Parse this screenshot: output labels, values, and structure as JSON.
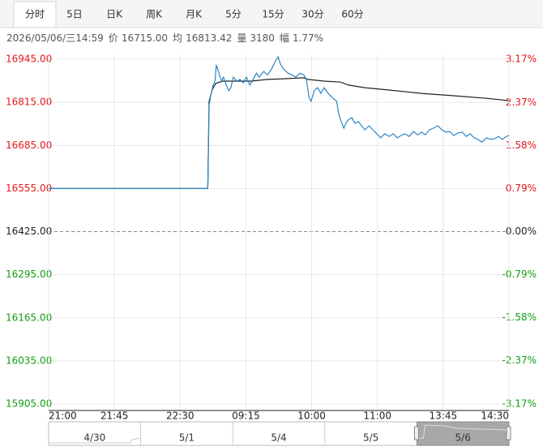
{
  "tabs": [
    "分时",
    "5日",
    "日K",
    "周K",
    "月K",
    "5分",
    "15分",
    "30分",
    "60分"
  ],
  "active_tab": 0,
  "info": [
    "2026/05/06/三14:59",
    "价",
    "16715.00",
    "均",
    "16813.42",
    "量",
    "3180",
    "幅",
    "1.77%"
  ],
  "chart_data": {
    "type": "line",
    "x": [
      0,
      24.2,
      24.4,
      24.6,
      25.0,
      25.3,
      25.5,
      25.9,
      26.3,
      26.6,
      27.0,
      27.4,
      27.7,
      28.1,
      28.6,
      29.1,
      29.6,
      30.1,
      30.6,
      31.1,
      31.6,
      32.0,
      32.7,
      33.3,
      33.9,
      34.5,
      34.9,
      35.2,
      35.7,
      36.4,
      37.0,
      37.6,
      38.2,
      38.8,
      39.2,
      39.6,
      39.9,
      40.4,
      40.9,
      41.4,
      41.9,
      42.5,
      43.1,
      43.8,
      44.1,
      44.5,
      44.9,
      45.2,
      45.6,
      46.1,
      46.6,
      47.1,
      47.6,
      48.1,
      48.7,
      49.3,
      49.9,
      50.5,
      51.1,
      51.8,
      52.4,
      53.0,
      53.6,
      54.2,
      54.8,
      55.5,
      56.1,
      56.7,
      57.3,
      57.9,
      58.5,
      59.2,
      59.8,
      60.4,
      61.0,
      61.6,
      62.2,
      62.9,
      63.5,
      64.1,
      64.7,
      65.3,
      65.9,
      66.6,
      67.2,
      67.8,
      68.4,
      69.0,
      69.6,
      70.0
    ],
    "series": [
      {
        "color": "#2c86c4",
        "values": [
          16555,
          16555,
          16805,
          16830,
          16867,
          16879,
          16928,
          16903,
          16879,
          16891,
          16867,
          16850,
          16859,
          16891,
          16879,
          16884,
          16874,
          16891,
          16867,
          16884,
          16903,
          16891,
          16908,
          16898,
          16916,
          16940,
          16952,
          16933,
          16916,
          16903,
          16898,
          16891,
          16903,
          16898,
          16884,
          16830,
          16818,
          16850,
          16859,
          16842,
          16859,
          16842,
          16830,
          16818,
          16781,
          16757,
          16737,
          16752,
          16762,
          16769,
          16752,
          16757,
          16744,
          16732,
          16744,
          16732,
          16720,
          16708,
          16720,
          16712,
          16720,
          16708,
          16715,
          16720,
          16712,
          16727,
          16717,
          16725,
          16717,
          16732,
          16737,
          16744,
          16732,
          16725,
          16727,
          16715,
          16722,
          16725,
          16712,
          16720,
          16708,
          16703,
          16695,
          16708,
          16703,
          16705,
          16712,
          16703,
          16712,
          16715
        ]
      },
      {
        "color": "#222222",
        "x": [
          0,
          24.2,
          24.4,
          24.9,
          25.4,
          26.5,
          28.3,
          30.8,
          33.3,
          35.7,
          38.8,
          39.4,
          41.9,
          44.4,
          45.6,
          48.1,
          51.8,
          56.7,
          61.6,
          66.6,
          70
        ],
        "values": [
          16555,
          16555,
          16818,
          16854,
          16872,
          16879,
          16879,
          16879,
          16884,
          16886,
          16889,
          16884,
          16879,
          16876,
          16867,
          16859,
          16852,
          16842,
          16835,
          16827,
          16820
        ]
      }
    ],
    "xlim": [
      0,
      70
    ],
    "xticks": [
      {
        "value": 0,
        "label": "21:00"
      },
      {
        "value": 10,
        "label": "21:45"
      },
      {
        "value": 20,
        "label": "22:30"
      },
      {
        "value": 30,
        "label": "09:15"
      },
      {
        "value": 40,
        "label": "10:00"
      },
      {
        "value": 50,
        "label": "11:00"
      },
      {
        "value": 60,
        "label": "13:45"
      },
      {
        "value": 70,
        "label": "14:30"
      }
    ],
    "ylim": [
      15905,
      16945
    ],
    "yticks": [
      {
        "value": 16945,
        "label": "16945.00"
      },
      {
        "value": 16815,
        "label": "16815.00"
      },
      {
        "value": 16685,
        "label": "16685.00"
      },
      {
        "value": 16555,
        "label": "16555.00"
      },
      {
        "value": 16425,
        "label": "16425.00"
      },
      {
        "value": 16295,
        "label": "16295.00"
      },
      {
        "value": 16165,
        "label": "16165.00"
      },
      {
        "value": 16035,
        "label": "16035.00"
      },
      {
        "value": 15905,
        "label": "15905.00"
      }
    ],
    "y2lim": [
      -3.17,
      3.17
    ],
    "y2ticks": [
      {
        "value": 3.17,
        "label": "3.17%"
      },
      {
        "value": 2.37,
        "label": "2.37%"
      },
      {
        "value": 1.58,
        "label": "1.58%"
      },
      {
        "value": 0.79,
        "label": "0.79%"
      },
      {
        "value": 0,
        "label": "0.00%"
      },
      {
        "value": -0.79,
        "label": "-0.79%"
      },
      {
        "value": -1.58,
        "label": "-1.58%"
      },
      {
        "value": -2.37,
        "label": "-2.37%"
      },
      {
        "value": -3.17,
        "label": "-3.17%"
      }
    ],
    "reference_line": 16425,
    "grid": true
  },
  "navigator": {
    "labels": [
      "4/30",
      "5/1",
      "5/4",
      "5/5",
      "5/6"
    ],
    "selected": 4
  }
}
